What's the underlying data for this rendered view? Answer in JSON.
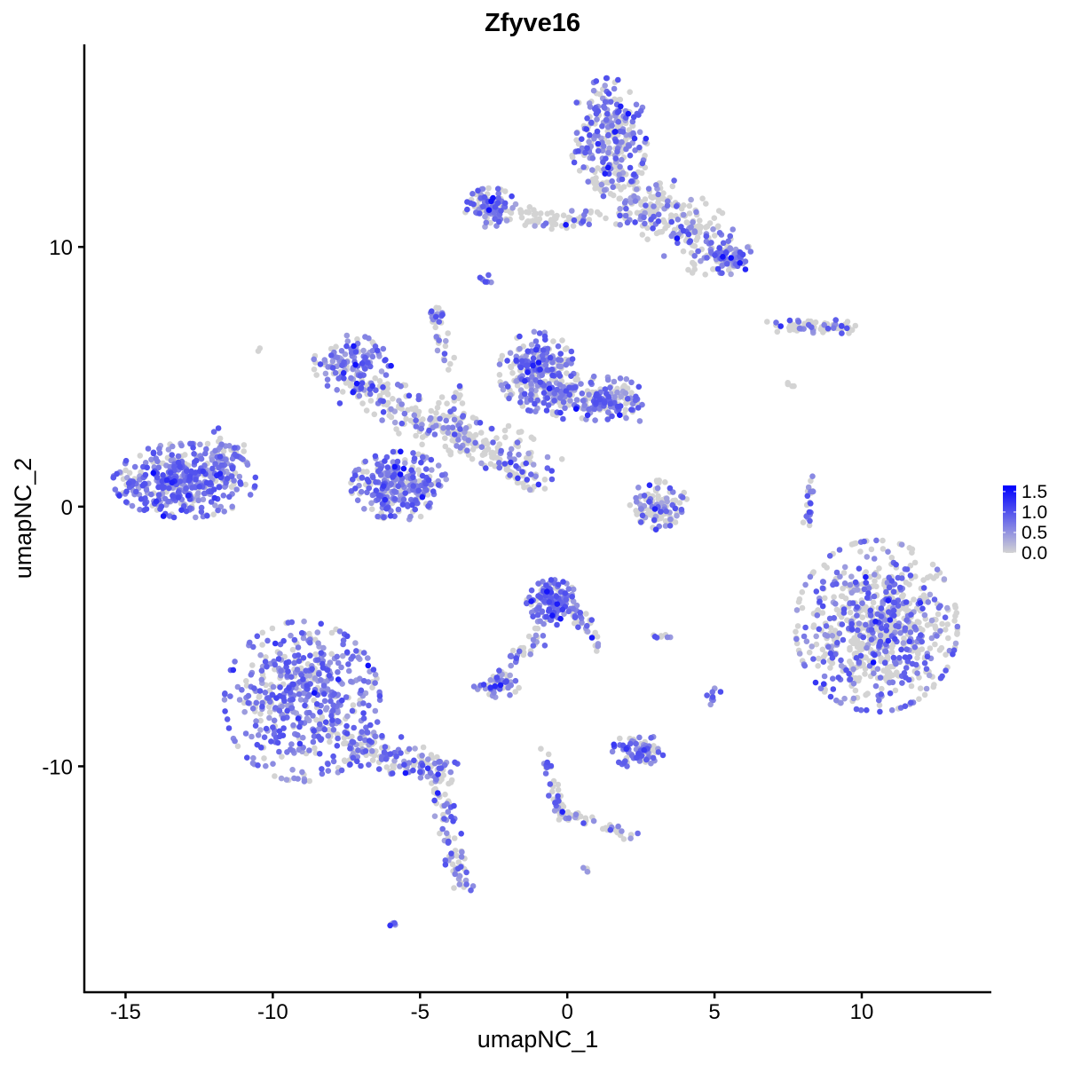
{
  "chart_data": {
    "type": "scatter",
    "title": "Zfyve16",
    "xlabel": "umapNC_1",
    "ylabel": "umapNC_2",
    "xlim": [
      -16.4,
      14.4
    ],
    "ylim": [
      -18.7,
      17.8
    ],
    "xticks": [
      -15,
      -10,
      -5,
      0,
      5,
      10
    ],
    "xtick_labels": [
      "-15",
      "-10",
      "-5",
      "0",
      "5",
      "10"
    ],
    "yticks": [
      -10,
      0,
      10
    ],
    "ytick_labels": [
      "-10",
      "0",
      "10"
    ],
    "grid": false,
    "color_scale": {
      "low": "#D3D3D3",
      "high": "#0000FF",
      "range": [
        0,
        1.65
      ],
      "breaks": [
        0.0,
        0.5,
        1.0,
        1.5
      ],
      "break_labels": [
        "0.0",
        "0.5",
        "1.0",
        "1.5"
      ],
      "legend_position": "right"
    },
    "clusters": [
      {
        "center": [
          -13.0,
          1.0
        ],
        "sd": [
          1.1,
          0.65
        ],
        "n_points": 420,
        "expr_frac": 0.8
      },
      {
        "center": [
          -11.6,
          2.0
        ],
        "sd": [
          0.3,
          0.5
        ],
        "n_points": 40,
        "expr_frac": 0.6
      },
      {
        "center": [
          -9.0,
          -7.5
        ],
        "sd": [
          1.2,
          1.4
        ],
        "n_points": 520,
        "expr_frac": 0.75
      },
      {
        "from": [
          -7.5,
          -9.0
        ],
        "to": [
          -4.0,
          -10.3
        ],
        "sd": [
          0.35,
          0.35
        ],
        "n_points": 160,
        "expr_frac": 0.5
      },
      {
        "from": [
          -4.3,
          -11.0
        ],
        "to": [
          -3.5,
          -14.8
        ],
        "sd": [
          0.2,
          0.2
        ],
        "n_points": 70,
        "expr_frac": 0.6
      },
      {
        "center": [
          -7.3,
          5.5
        ],
        "sd": [
          0.6,
          0.5
        ],
        "n_points": 130,
        "expr_frac": 0.8
      },
      {
        "center": [
          -5.7,
          0.8
        ],
        "sd": [
          0.75,
          0.6
        ],
        "n_points": 260,
        "expr_frac": 0.7
      },
      {
        "from": [
          -7.0,
          4.5
        ],
        "to": [
          -1.0,
          1.5
        ],
        "sd": [
          0.45,
          0.45
        ],
        "n_points": 260,
        "expr_frac": 0.35
      },
      {
        "from": [
          -4.5,
          7.4
        ],
        "to": [
          -3.5,
          2.5
        ],
        "sd": [
          0.15,
          0.15
        ],
        "n_points": 50,
        "expr_frac": 0.3
      },
      {
        "from": [
          -2.7,
          2.0
        ],
        "to": [
          -1.2,
          0.7
        ],
        "sd": [
          0.1,
          0.1
        ],
        "n_points": 30,
        "expr_frac": 0.2
      },
      {
        "center": [
          -1.0,
          5.2
        ],
        "sd": [
          0.6,
          0.7
        ],
        "n_points": 230,
        "expr_frac": 0.7
      },
      {
        "from": [
          -0.5,
          4.3
        ],
        "to": [
          2.3,
          4.0
        ],
        "sd": [
          0.4,
          0.4
        ],
        "n_points": 200,
        "expr_frac": 0.6
      },
      {
        "center": [
          1.4,
          14.3
        ],
        "sd": [
          0.6,
          1.0
        ],
        "n_points": 260,
        "expr_frac": 0.55
      },
      {
        "from": [
          1.5,
          12.5
        ],
        "to": [
          5.0,
          10.0
        ],
        "sd": [
          0.55,
          0.6
        ],
        "n_points": 260,
        "expr_frac": 0.35
      },
      {
        "center": [
          5.5,
          9.6
        ],
        "sd": [
          0.35,
          0.3
        ],
        "n_points": 80,
        "expr_frac": 0.7
      },
      {
        "center": [
          -2.6,
          11.5
        ],
        "sd": [
          0.4,
          0.35
        ],
        "n_points": 90,
        "expr_frac": 0.65
      },
      {
        "from": [
          -2.0,
          11.2
        ],
        "to": [
          1.0,
          11.0
        ],
        "sd": [
          0.15,
          0.2
        ],
        "n_points": 60,
        "expr_frac": 0.3
      },
      {
        "from": [
          7.0,
          7.0
        ],
        "to": [
          9.8,
          6.9
        ],
        "sd": [
          0.15,
          0.12
        ],
        "n_points": 70,
        "expr_frac": 0.35
      },
      {
        "center": [
          10.5,
          -4.6
        ],
        "sd": [
          1.25,
          1.5
        ],
        "n_points": 750,
        "expr_frac": 0.4
      },
      {
        "center": [
          3.1,
          0.0
        ],
        "sd": [
          0.45,
          0.5
        ],
        "n_points": 110,
        "expr_frac": 0.4
      },
      {
        "center": [
          -0.5,
          -3.7
        ],
        "sd": [
          0.4,
          0.4
        ],
        "n_points": 140,
        "expr_frac": 0.85
      },
      {
        "from": [
          -0.8,
          -4.8
        ],
        "to": [
          -2.5,
          -6.9
        ],
        "sd": [
          0.18,
          0.18
        ],
        "n_points": 45,
        "expr_frac": 0.6
      },
      {
        "center": [
          -2.4,
          -6.9
        ],
        "sd": [
          0.35,
          0.2
        ],
        "n_points": 50,
        "expr_frac": 0.55
      },
      {
        "from": [
          0.3,
          -4.0
        ],
        "to": [
          1.2,
          -5.5
        ],
        "sd": [
          0.15,
          0.15
        ],
        "n_points": 30,
        "expr_frac": 0.5
      },
      {
        "center": [
          2.4,
          -9.4
        ],
        "sd": [
          0.4,
          0.3
        ],
        "n_points": 90,
        "expr_frac": 0.7
      },
      {
        "from": [
          -0.8,
          -9.3
        ],
        "to": [
          -0.2,
          -12.0
        ],
        "sd": [
          0.12,
          0.12
        ],
        "n_points": 35,
        "expr_frac": 0.5
      },
      {
        "from": [
          -0.2,
          -11.8
        ],
        "to": [
          2.4,
          -12.7
        ],
        "sd": [
          0.12,
          0.12
        ],
        "n_points": 40,
        "expr_frac": 0.4
      },
      {
        "from": [
          8.1,
          -0.8
        ],
        "to": [
          8.4,
          1.3
        ],
        "sd": [
          0.08,
          0.1
        ],
        "n_points": 25,
        "expr_frac": 0.5
      },
      {
        "center": [
          -4.5,
          7.4
        ],
        "sd": [
          0.12,
          0.15
        ],
        "n_points": 12,
        "expr_frac": 0.8
      },
      {
        "center": [
          -2.8,
          8.7
        ],
        "sd": [
          0.1,
          0.12
        ],
        "n_points": 8,
        "expr_frac": 0.6
      },
      {
        "center": [
          5.0,
          -7.3
        ],
        "sd": [
          0.12,
          0.18
        ],
        "n_points": 10,
        "expr_frac": 0.9
      },
      {
        "center": [
          -6.0,
          -16.1
        ],
        "sd": [
          0.12,
          0.06
        ],
        "n_points": 6,
        "expr_frac": 0.8
      },
      {
        "center": [
          0.6,
          -14.0
        ],
        "sd": [
          0.06,
          0.06
        ],
        "n_points": 4,
        "expr_frac": 0.8
      },
      {
        "center": [
          3.1,
          -5.0
        ],
        "sd": [
          0.25,
          0.05
        ],
        "n_points": 8,
        "expr_frac": 0.5
      },
      {
        "center": [
          -10.5,
          6.1
        ],
        "sd": [
          0.05,
          0.05
        ],
        "n_points": 2,
        "expr_frac": 0.0
      },
      {
        "center": [
          7.7,
          4.7
        ],
        "sd": [
          0.1,
          0.1
        ],
        "n_points": 4,
        "expr_frac": 0.0
      }
    ]
  }
}
